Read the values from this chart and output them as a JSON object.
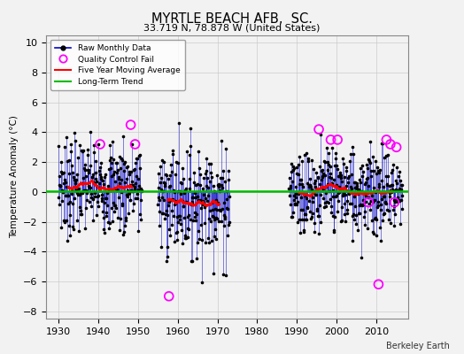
{
  "title": "MYRTLE BEACH AFB,  SC.",
  "subtitle": "33.719 N, 78.878 W (United States)",
  "ylabel": "Temperature Anomaly (°C)",
  "xlabel_credit": "Berkeley Earth",
  "xlim": [
    1927,
    2018
  ],
  "ylim": [
    -8.5,
    10.5
  ],
  "yticks": [
    -8,
    -6,
    -4,
    -2,
    0,
    2,
    4,
    6,
    8,
    10
  ],
  "xticks": [
    1930,
    1940,
    1950,
    1960,
    1970,
    1980,
    1990,
    2000,
    2010
  ],
  "background_color": "#f2f2f2",
  "line_color": "#0000cc",
  "moving_avg_color": "#ff0000",
  "trend_color": "#00bb00",
  "qc_fail_color": "#ff00ff",
  "dot_color": "#000000",
  "segments": [
    {
      "start": 1930.0,
      "end": 1951.0,
      "mean": 0.4,
      "std": 1.6
    },
    {
      "start": 1955.0,
      "end": 1973.0,
      "mean": -0.5,
      "std": 1.8
    },
    {
      "start": 1988.0,
      "end": 2016.5,
      "mean": 0.1,
      "std": 1.5
    }
  ],
  "qc_fails": [
    {
      "year": 1940.5,
      "value": 3.2
    },
    {
      "year": 1948.2,
      "value": 4.5
    },
    {
      "year": 1949.3,
      "value": 3.2
    },
    {
      "year": 1957.8,
      "value": -7.0
    },
    {
      "year": 1995.5,
      "value": 4.2
    },
    {
      "year": 1998.5,
      "value": 3.5
    },
    {
      "year": 2000.2,
      "value": 3.5
    },
    {
      "year": 2008.0,
      "value": -0.7
    },
    {
      "year": 2010.5,
      "value": -6.2
    },
    {
      "year": 2012.5,
      "value": 3.5
    },
    {
      "year": 2013.5,
      "value": 3.2
    },
    {
      "year": 2014.5,
      "value": -0.7
    },
    {
      "year": 2015.0,
      "value": 3.0
    }
  ],
  "seed": 7
}
